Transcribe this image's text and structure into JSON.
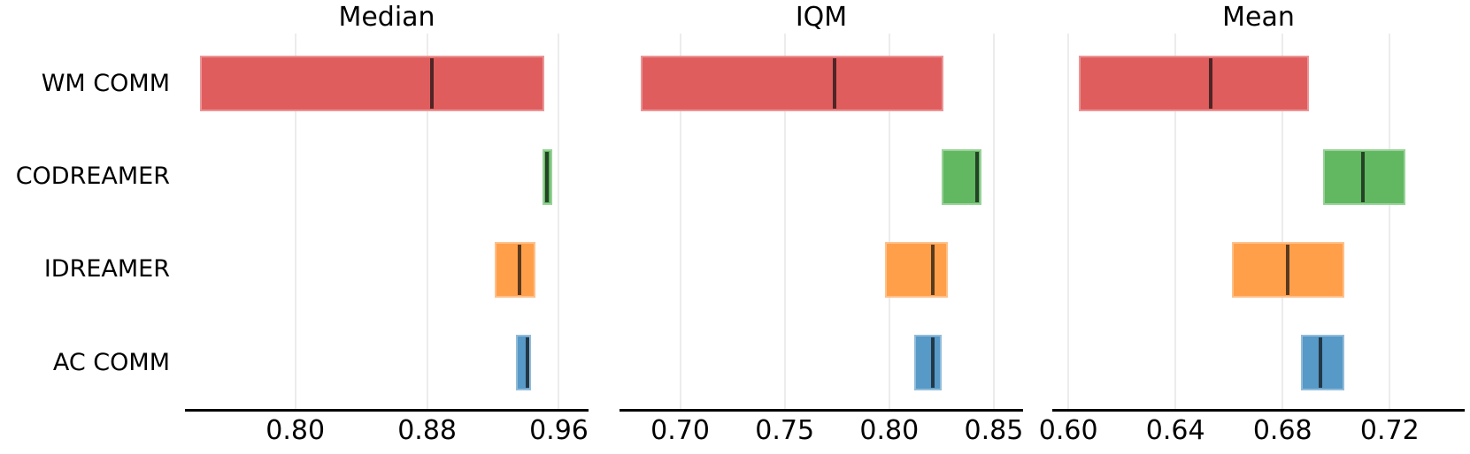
{
  "figure": {
    "background": "#ffffff",
    "text_color": "#000000",
    "gridline_color": "#ececec",
    "point_line_color": "rgba(10,10,10,0.68)"
  },
  "row_labels": [
    "WM COMM",
    "CODREAMER",
    "IDREAMER",
    "AC COMM"
  ],
  "algorithm_colors": {
    "WM COMM": "#e05d5e",
    "CODREAMER": "#61b861",
    "IDREAMER": "#ff9f4a",
    "AC COMM": "#5799c7"
  },
  "chart_data": [
    {
      "type": "bar",
      "title": "Median",
      "orientation": "horizontal-interval",
      "grid": true,
      "legend": false,
      "categories": [
        "WM COMM",
        "CODREAMER",
        "IDREAMER",
        "AC COMM"
      ],
      "xlim": [
        0.733,
        0.978
      ],
      "xtick_labels": [
        "0.80",
        "0.88",
        "0.96"
      ],
      "xtick_values": [
        0.8,
        0.88,
        0.96
      ],
      "series": [
        {
          "name": "WM COMM",
          "lower": 0.742,
          "upper": 0.951,
          "point": 0.883,
          "color": "#e05d5e"
        },
        {
          "name": "CODREAMER",
          "lower": 0.95,
          "upper": 0.956,
          "point": 0.953,
          "color": "#61b861"
        },
        {
          "name": "IDREAMER",
          "lower": 0.921,
          "upper": 0.946,
          "point": 0.936,
          "color": "#ff9f4a"
        },
        {
          "name": "AC COMM",
          "lower": 0.934,
          "upper": 0.943,
          "point": 0.941,
          "color": "#5799c7"
        }
      ]
    },
    {
      "type": "bar",
      "title": "IQM",
      "orientation": "horizontal-interval",
      "grid": true,
      "legend": false,
      "categories": [
        "WM COMM",
        "CODREAMER",
        "IDREAMER",
        "AC COMM"
      ],
      "xlim": [
        0.671,
        0.864
      ],
      "xtick_labels": [
        "0.70",
        "0.75",
        "0.80",
        "0.85"
      ],
      "xtick_values": [
        0.7,
        0.75,
        0.8,
        0.85
      ],
      "series": [
        {
          "name": "WM COMM",
          "lower": 0.681,
          "upper": 0.826,
          "point": 0.774,
          "color": "#e05d5e"
        },
        {
          "name": "CODREAMER",
          "lower": 0.825,
          "upper": 0.844,
          "point": 0.842,
          "color": "#61b861"
        },
        {
          "name": "IDREAMER",
          "lower": 0.798,
          "upper": 0.828,
          "point": 0.821,
          "color": "#ff9f4a"
        },
        {
          "name": "AC COMM",
          "lower": 0.812,
          "upper": 0.825,
          "point": 0.821,
          "color": "#5799c7"
        }
      ]
    },
    {
      "type": "bar",
      "title": "Mean",
      "orientation": "horizontal-interval",
      "grid": true,
      "legend": false,
      "categories": [
        "WM COMM",
        "CODREAMER",
        "IDREAMER",
        "AC COMM"
      ],
      "xlim": [
        0.594,
        0.748
      ],
      "xtick_labels": [
        "0.60",
        "0.64",
        "0.68",
        "0.72"
      ],
      "xtick_values": [
        0.6,
        0.64,
        0.68,
        0.72
      ],
      "series": [
        {
          "name": "WM COMM",
          "lower": 0.604,
          "upper": 0.69,
          "point": 0.653,
          "color": "#e05d5e"
        },
        {
          "name": "CODREAMER",
          "lower": 0.695,
          "upper": 0.726,
          "point": 0.71,
          "color": "#61b861"
        },
        {
          "name": "IDREAMER",
          "lower": 0.661,
          "upper": 0.703,
          "point": 0.682,
          "color": "#ff9f4a"
        },
        {
          "name": "AC COMM",
          "lower": 0.687,
          "upper": 0.703,
          "point": 0.694,
          "color": "#5799c7"
        }
      ]
    }
  ]
}
